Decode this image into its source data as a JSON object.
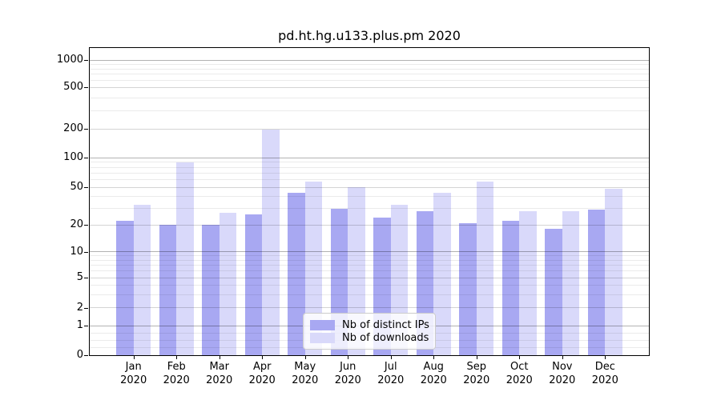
{
  "figure": {
    "background": "#ffffff"
  },
  "chart_data": {
    "type": "bar",
    "title": "pd.ht.hg.u133.plus.pm 2020",
    "categories": [
      "Jan",
      "Feb",
      "Mar",
      "Apr",
      "May",
      "Jun",
      "Jul",
      "Aug",
      "Sep",
      "Oct",
      "Nov",
      "Dec"
    ],
    "series": [
      {
        "name": "Nb of distinct IPs",
        "color": "#a8a8f2",
        "values": [
          22,
          20,
          20,
          26,
          44,
          30,
          24,
          28,
          21,
          22,
          18,
          29
        ]
      },
      {
        "name": "Nb of downloads",
        "color": "#d9d9fa",
        "values": [
          33,
          89,
          27,
          197,
          57,
          50,
          33,
          44,
          57,
          28,
          28,
          48
        ]
      }
    ],
    "x_axis": {
      "year_line": "2020"
    },
    "y_axis": {
      "scale": "symlog",
      "tick_labels": [
        "0",
        "1",
        "2",
        "5",
        "10",
        "20",
        "50",
        "100",
        "200",
        "500",
        "1000"
      ],
      "tick_values": [
        0,
        1,
        2,
        5,
        10,
        20,
        50,
        100,
        200,
        500,
        1000
      ],
      "ylim": [
        0,
        1400
      ],
      "anchors": [
        [
          0,
          0
        ],
        [
          1,
          0.0956
        ],
        [
          2,
          0.1538
        ],
        [
          5,
          0.2514
        ],
        [
          10,
          0.3364
        ],
        [
          20,
          0.4236
        ],
        [
          50,
          0.546
        ],
        [
          100,
          0.6429
        ],
        [
          200,
          0.7364
        ],
        [
          500,
          0.8714
        ],
        [
          1000,
          0.9597
        ]
      ],
      "grid_major": [
        1,
        10,
        100,
        1000
      ],
      "grid_medium": [
        2,
        5,
        20,
        50,
        200,
        500
      ],
      "grid_minor": [
        0.25,
        0.5,
        0.75,
        3,
        4,
        6,
        7,
        8,
        9,
        30,
        40,
        60,
        70,
        80,
        90,
        300,
        400,
        600,
        700,
        800,
        900
      ]
    },
    "legend": {
      "entries": [
        "Nb of distinct IPs",
        "Nb of downloads"
      ],
      "position": "lower center"
    },
    "grid": true
  },
  "colors": {
    "grid_major": "rgba(0,0,0,0.30)",
    "grid_medium": "rgba(0,0,0,0.17)",
    "grid_minor": "rgba(0,0,0,0.08)",
    "axis": "#000000",
    "legend_border": "#cccccc",
    "legend_bg": "rgba(255,255,255,0.8)"
  }
}
